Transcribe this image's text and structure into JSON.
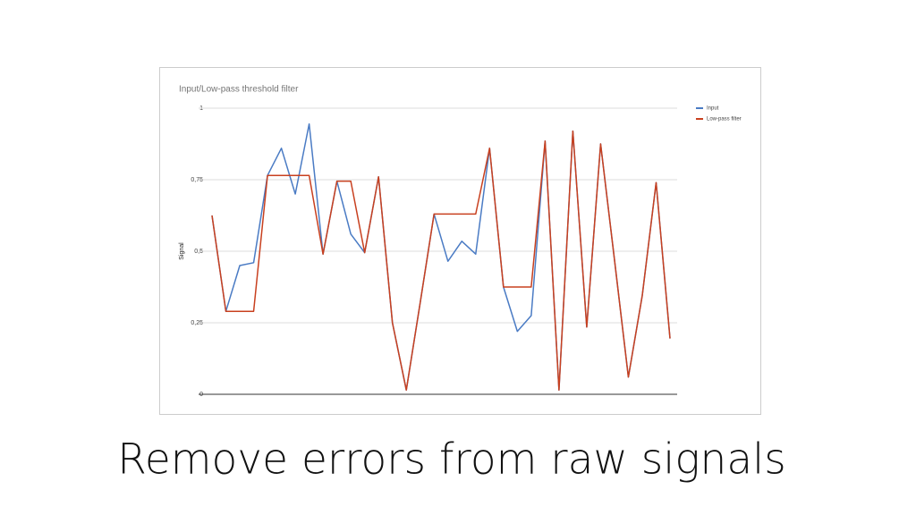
{
  "caption": "Remove errors from raw signals",
  "chart_data": {
    "type": "line",
    "title": "Input/Low-pass threshold filter",
    "y_label": "Signal",
    "ylim": [
      0,
      1
    ],
    "yticks": [
      0,
      {
        "value": 0.25,
        "label": "0,25"
      },
      {
        "value": 0.5,
        "label": "0,5"
      },
      {
        "value": 0.75,
        "label": "0,75"
      },
      1
    ],
    "grid": true,
    "legend": "right",
    "series": [
      {
        "name": "Input",
        "color": "#4a7bc4",
        "values": [
          0.625,
          0.29,
          0.45,
          0.46,
          0.765,
          0.86,
          0.7,
          0.945,
          0.49,
          0.745,
          0.56,
          0.495,
          0.76,
          0.25,
          0.015,
          0.32,
          0.63,
          0.465,
          0.535,
          0.49,
          0.86,
          0.375,
          0.22,
          0.275,
          0.885,
          0.015,
          0.92,
          0.235,
          0.875,
          0.47,
          0.06,
          0.345,
          0.74,
          0.195
        ]
      },
      {
        "name": "Low-pass filter",
        "color": "#c8401f",
        "values": [
          0.625,
          0.29,
          0.29,
          0.29,
          0.765,
          0.765,
          0.765,
          0.765,
          0.49,
          0.745,
          0.745,
          0.495,
          0.76,
          0.25,
          0.015,
          0.32,
          0.63,
          0.63,
          0.63,
          0.63,
          0.86,
          0.375,
          0.375,
          0.375,
          0.885,
          0.015,
          0.92,
          0.235,
          0.875,
          0.47,
          0.06,
          0.345,
          0.74,
          0.195
        ]
      }
    ]
  }
}
